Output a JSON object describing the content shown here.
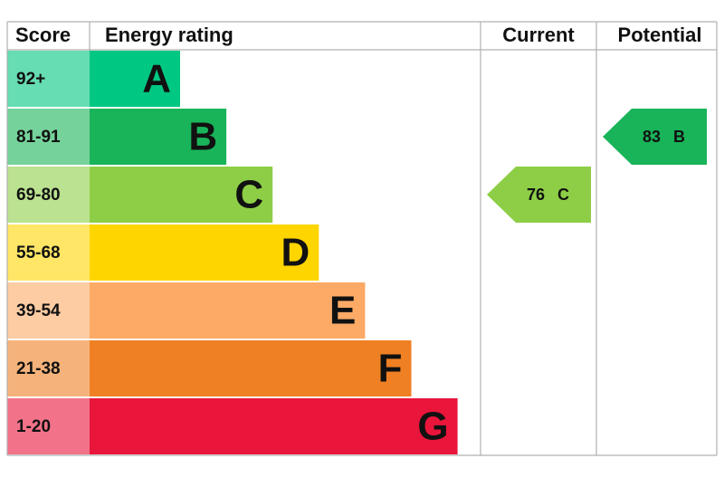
{
  "header": {
    "score": "Score",
    "energy_rating": "Energy rating",
    "current": "Current",
    "potential": "Potential"
  },
  "bands": [
    {
      "score": "92+",
      "letter": "A",
      "color": "#00c781"
    },
    {
      "score": "81-91",
      "letter": "B",
      "color": "#19b459"
    },
    {
      "score": "69-80",
      "letter": "C",
      "color": "#8dce46"
    },
    {
      "score": "55-68",
      "letter": "D",
      "color": "#ffd500"
    },
    {
      "score": "39-54",
      "letter": "E",
      "color": "#fcaa65"
    },
    {
      "score": "21-38",
      "letter": "F",
      "color": "#ef8023"
    },
    {
      "score": "1-20",
      "letter": "G",
      "color": "#e9153b"
    }
  ],
  "current": {
    "value": 76,
    "letter": "C"
  },
  "potential": {
    "value": 83,
    "letter": "B"
  }
}
